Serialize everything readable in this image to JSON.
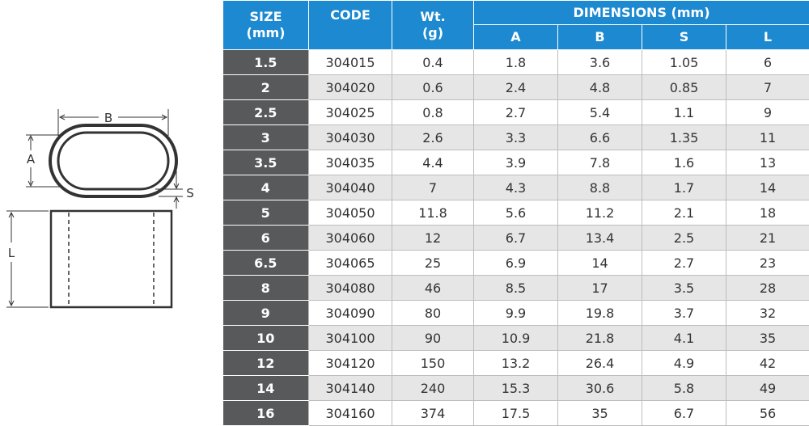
{
  "diagram": {
    "labels": {
      "b": "B",
      "a": "A",
      "s": "S",
      "l": "L"
    }
  },
  "table": {
    "headers": {
      "size": "SIZE\n(mm)",
      "code": "CODE",
      "weight": "Wt.\n(g)",
      "dimensions": "DIMENSIONS (mm)",
      "dims": [
        "A",
        "B",
        "S",
        "L"
      ]
    },
    "rows": [
      [
        "1.5",
        "304015",
        "0.4",
        "1.8",
        "3.6",
        "1.05",
        "6"
      ],
      [
        "2",
        "304020",
        "0.6",
        "2.4",
        "4.8",
        "0.85",
        "7"
      ],
      [
        "2.5",
        "304025",
        "0.8",
        "2.7",
        "5.4",
        "1.1",
        "9"
      ],
      [
        "3",
        "304030",
        "2.6",
        "3.3",
        "6.6",
        "1.35",
        "11"
      ],
      [
        "3.5",
        "304035",
        "4.4",
        "3.9",
        "7.8",
        "1.6",
        "13"
      ],
      [
        "4",
        "304040",
        "7",
        "4.3",
        "8.8",
        "1.7",
        "14"
      ],
      [
        "5",
        "304050",
        "11.8",
        "5.6",
        "11.2",
        "2.1",
        "18"
      ],
      [
        "6",
        "304060",
        "12",
        "6.7",
        "13.4",
        "2.5",
        "21"
      ],
      [
        "6.5",
        "304065",
        "25",
        "6.9",
        "14",
        "2.7",
        "23"
      ],
      [
        "8",
        "304080",
        "46",
        "8.5",
        "17",
        "3.5",
        "28"
      ],
      [
        "9",
        "304090",
        "80",
        "9.9",
        "19.8",
        "3.7",
        "32"
      ],
      [
        "10",
        "304100",
        "90",
        "10.9",
        "21.8",
        "4.1",
        "35"
      ],
      [
        "12",
        "304120",
        "150",
        "13.2",
        "26.4",
        "4.9",
        "42"
      ],
      [
        "14",
        "304140",
        "240",
        "15.3",
        "30.6",
        "5.8",
        "49"
      ],
      [
        "16",
        "304160",
        "374",
        "17.5",
        "35",
        "6.7",
        "56"
      ]
    ]
  }
}
